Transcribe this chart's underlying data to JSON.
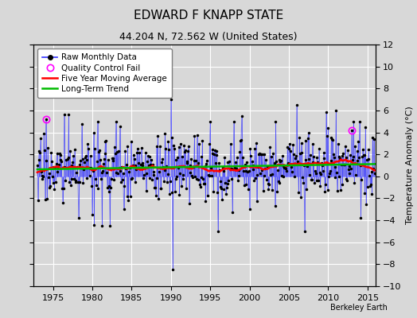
{
  "title": "EDWARD F KNAPP STATE",
  "subtitle": "44.204 N, 72.562 W (United States)",
  "ylabel": "Temperature Anomaly (°C)",
  "watermark": "Berkeley Earth",
  "xlim": [
    1972.5,
    2016.0
  ],
  "ylim": [
    -10,
    12
  ],
  "yticks": [
    -10,
    -8,
    -6,
    -4,
    -2,
    0,
    2,
    4,
    6,
    8,
    10,
    12
  ],
  "xticks": [
    1975,
    1980,
    1985,
    1990,
    1995,
    2000,
    2005,
    2010,
    2015
  ],
  "bg_color": "#d8d8d8",
  "plot_bg_color": "#d8d8d8",
  "grid_color": "#ffffff",
  "raw_color": "#3333ff",
  "ma_color": "#ff0000",
  "trend_color": "#00bb00",
  "qc_color": "#ff00ff",
  "seed": 17,
  "n_years": 43,
  "start_year": 1973
}
